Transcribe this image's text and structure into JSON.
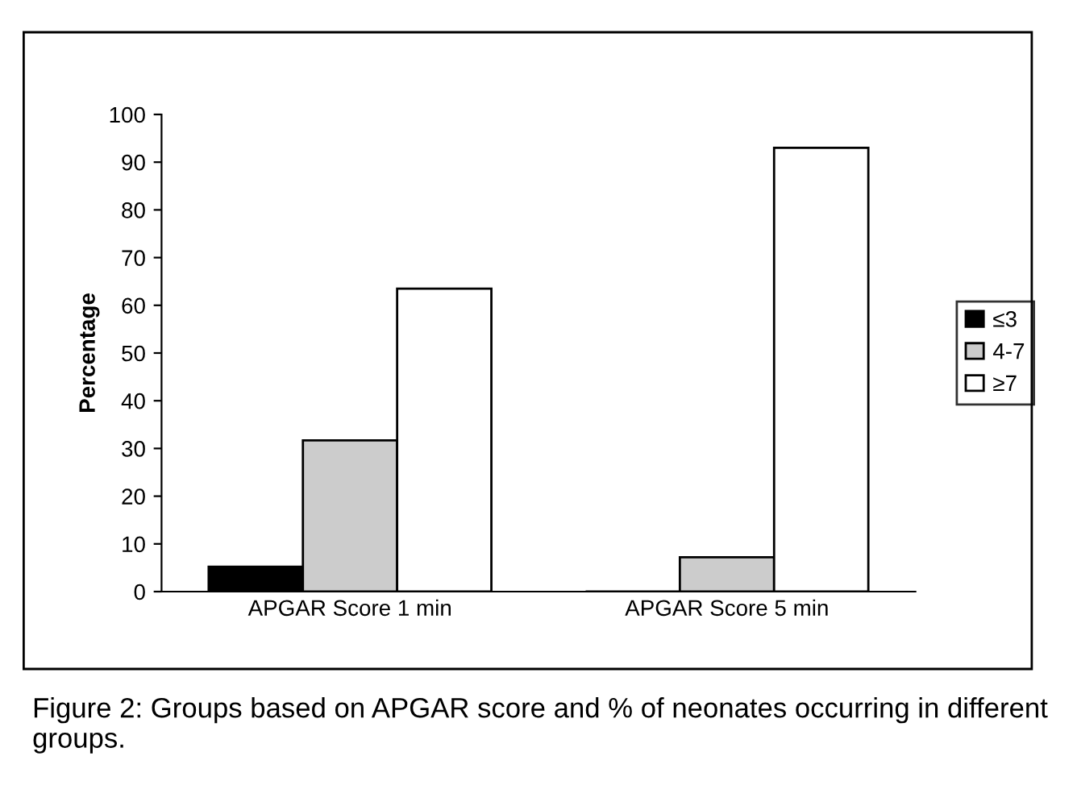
{
  "chart_data": {
    "type": "bar",
    "ylabel": "Percentage",
    "categories": [
      "APGAR Score 1 min",
      "APGAR Score 5 min"
    ],
    "series": [
      {
        "name": "≤3",
        "color": "#000000",
        "values": [
          5.2,
          0
        ]
      },
      {
        "name": "4-7",
        "color": "#cccccc",
        "values": [
          31.7,
          7.2
        ]
      },
      {
        "name": "≥7",
        "color": "#ffffff",
        "values": [
          63.5,
          93
        ]
      }
    ],
    "ylim": [
      0,
      100
    ],
    "yticks": [
      0,
      10,
      20,
      30,
      40,
      50,
      60,
      70,
      80,
      90,
      100
    ],
    "grid": false,
    "legend": "right",
    "annotations": [
      "Figure 2: Groups based on APGAR score and % of neonates occurring in different groups."
    ]
  }
}
